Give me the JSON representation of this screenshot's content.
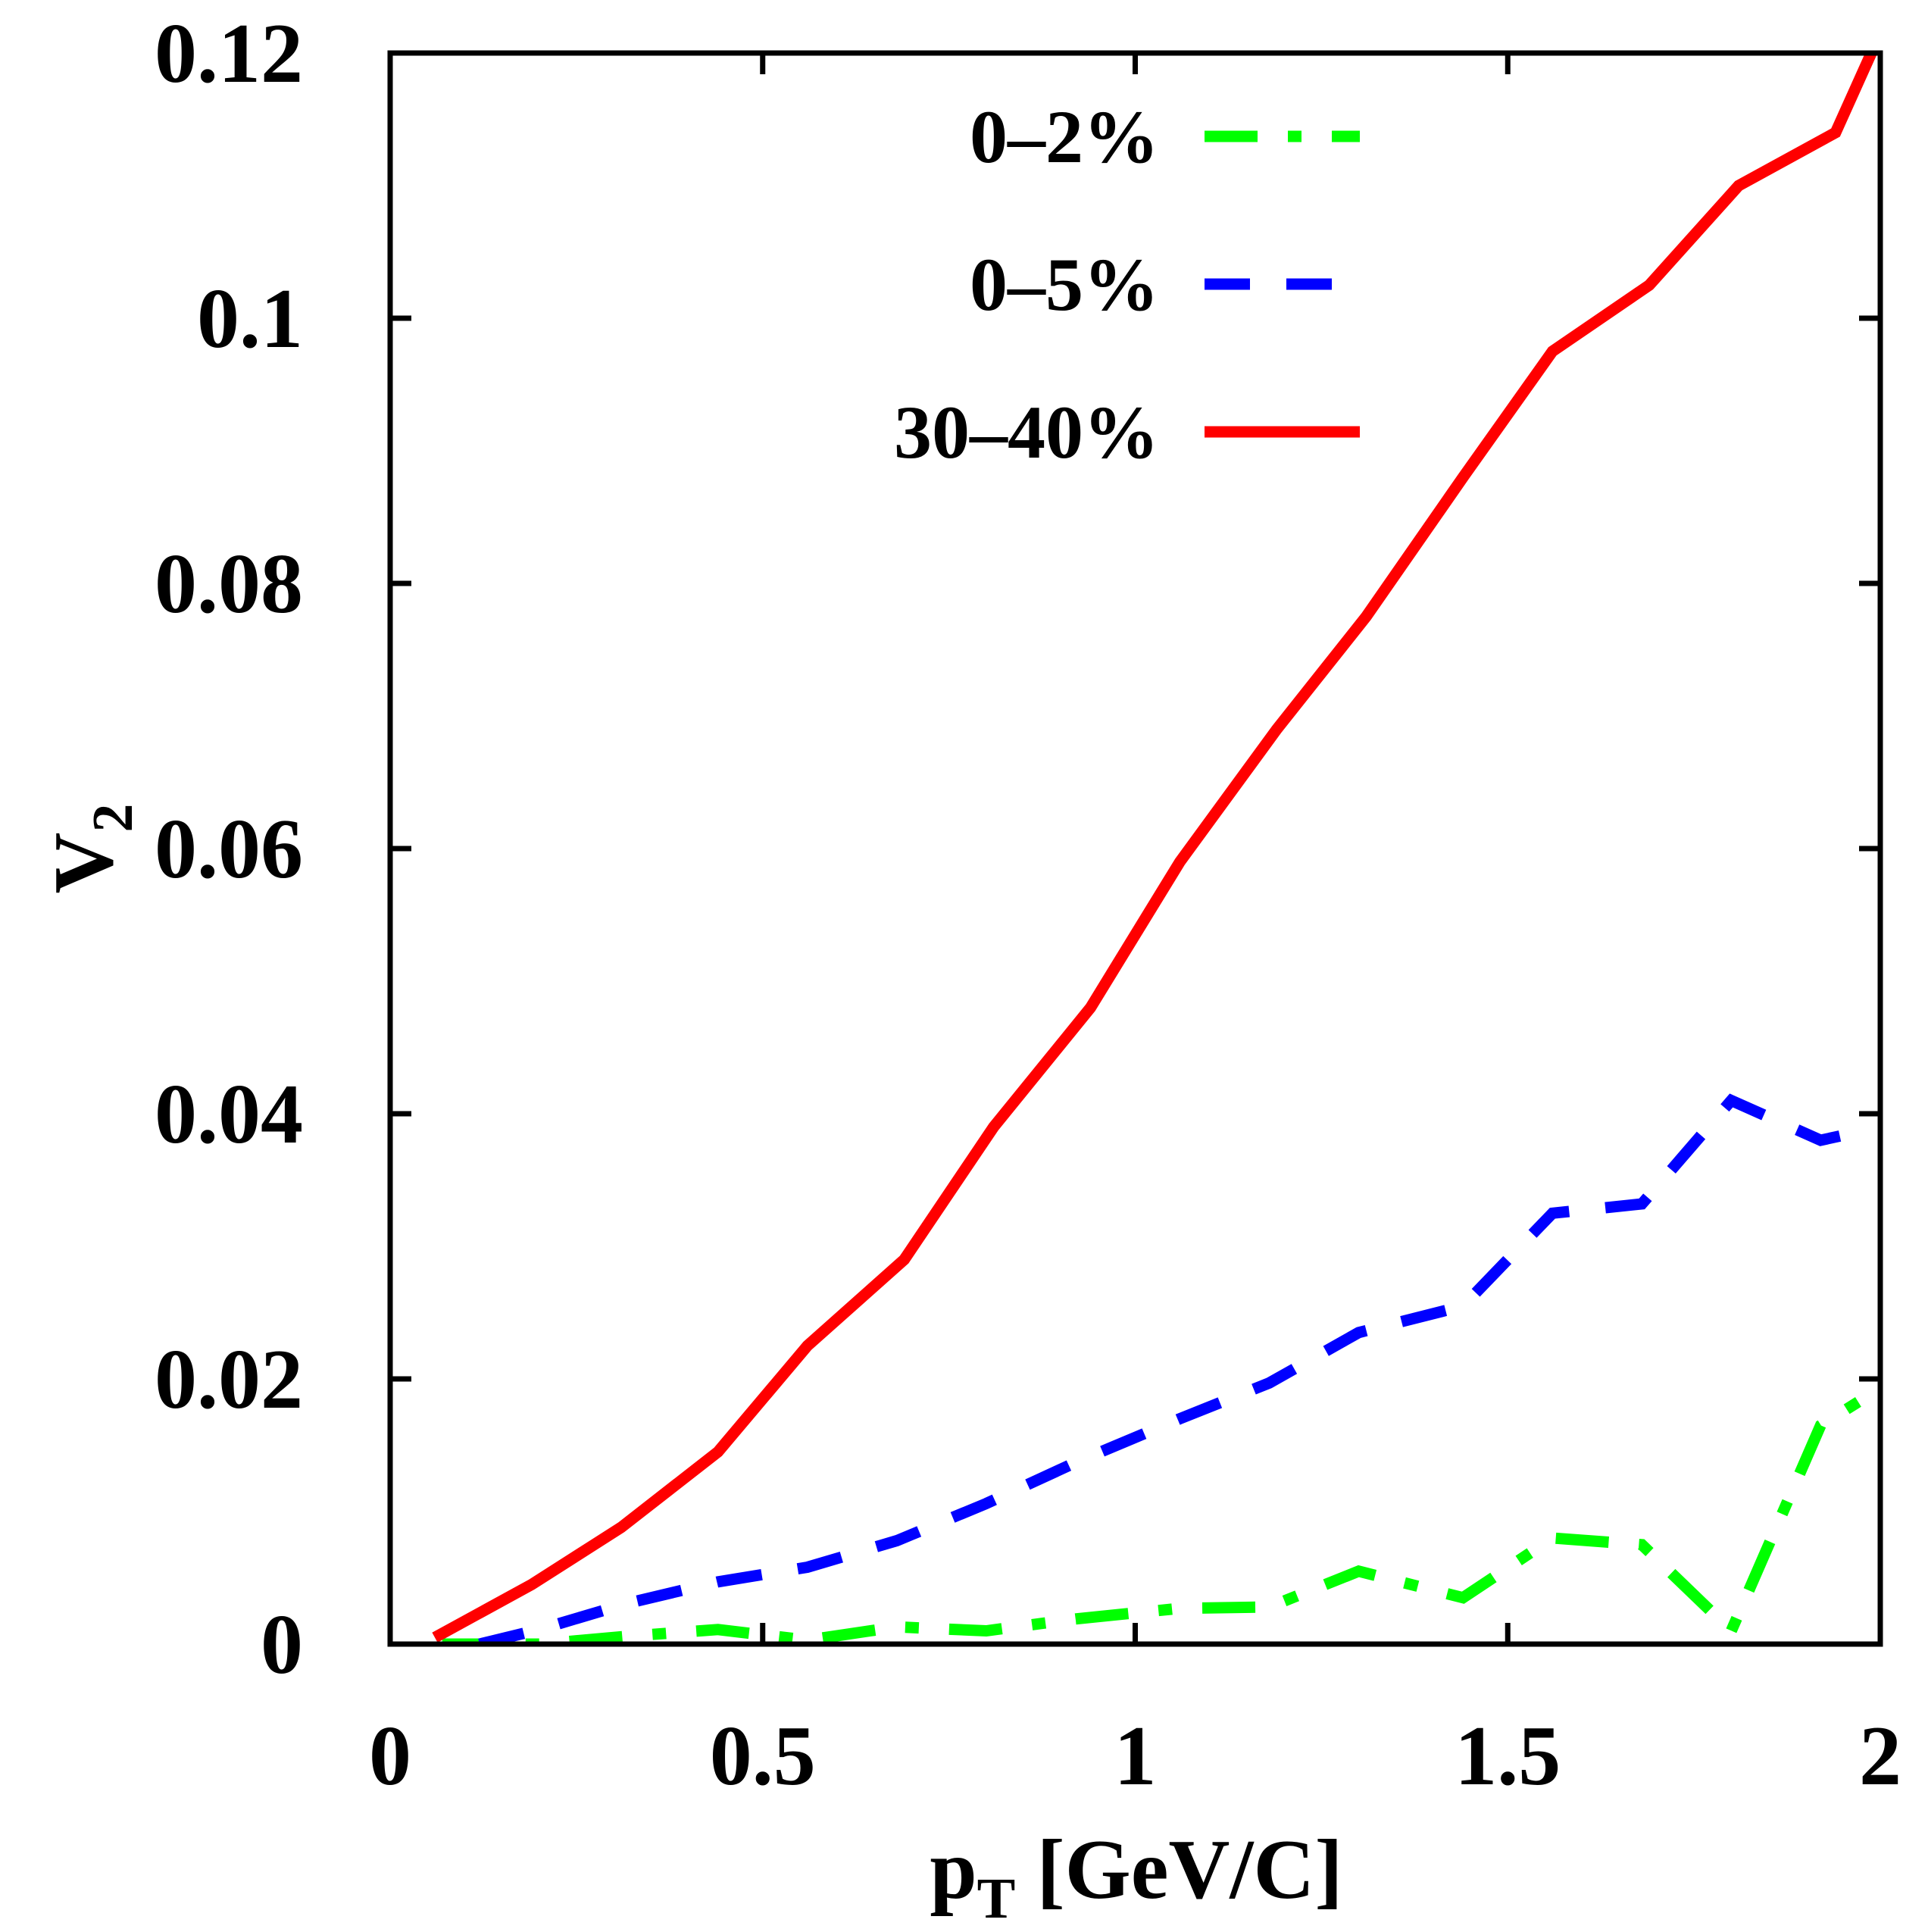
{
  "chart_data": {
    "type": "line",
    "title": "",
    "xlabel": {
      "main": "p",
      "sub": "T",
      "rest": " [GeV/C]"
    },
    "ylabel": {
      "main": "V",
      "sub": "2"
    },
    "xlim": [
      0,
      2
    ],
    "ylim": [
      0,
      0.12
    ],
    "xticks": [
      0,
      0.5,
      1,
      1.5,
      2
    ],
    "xtick_labels": [
      "0",
      "0.5",
      "1",
      "1.5",
      "2"
    ],
    "yticks": [
      0,
      0.02,
      0.04,
      0.06,
      0.08,
      0.1,
      0.12
    ],
    "ytick_labels": [
      "0",
      "0.02",
      "0.04",
      "0.06",
      "0.08",
      "0.1",
      "0.12"
    ],
    "grid": false,
    "legend_position": "top-right",
    "series": [
      {
        "name": "0–2%",
        "color": "#00ff00",
        "style": "dash-dot",
        "x": [
          0.07,
          0.2,
          0.32,
          0.44,
          0.56,
          0.68,
          0.8,
          0.92,
          1.06,
          1.18,
          1.3,
          1.44,
          1.56,
          1.68,
          1.8,
          1.92,
          2.0
        ],
        "y": [
          0.0,
          0.0,
          0.0006,
          0.0011,
          0.0003,
          0.0013,
          0.001,
          0.0019,
          0.0027,
          0.0028,
          0.0055,
          0.0035,
          0.008,
          0.0075,
          0.001,
          0.0165,
          0.0193
        ]
      },
      {
        "name": "0–5%",
        "color": "#0000ff",
        "style": "dashed",
        "x": [
          0.12,
          0.2,
          0.32,
          0.44,
          0.56,
          0.68,
          0.8,
          0.92,
          1.06,
          1.18,
          1.3,
          1.44,
          1.56,
          1.68,
          1.8,
          1.92,
          1.96
        ],
        "y": [
          0.0,
          0.0011,
          0.0031,
          0.0047,
          0.0058,
          0.0078,
          0.0106,
          0.0137,
          0.017,
          0.0197,
          0.0235,
          0.0255,
          0.0325,
          0.0332,
          0.041,
          0.038,
          0.0385
        ]
      },
      {
        "name": "30–40%",
        "color": "#ff0000",
        "style": "solid",
        "x": [
          0.06,
          0.19,
          0.31,
          0.44,
          0.56,
          0.69,
          0.81,
          0.94,
          1.06,
          1.19,
          1.31,
          1.44,
          1.56,
          1.69,
          1.81,
          1.94,
          2.0
        ],
        "y": [
          0.0005,
          0.0045,
          0.0088,
          0.0145,
          0.0225,
          0.029,
          0.039,
          0.048,
          0.059,
          0.069,
          0.0775,
          0.088,
          0.0975,
          0.1025,
          0.11,
          0.114,
          0.1215
        ]
      }
    ]
  }
}
